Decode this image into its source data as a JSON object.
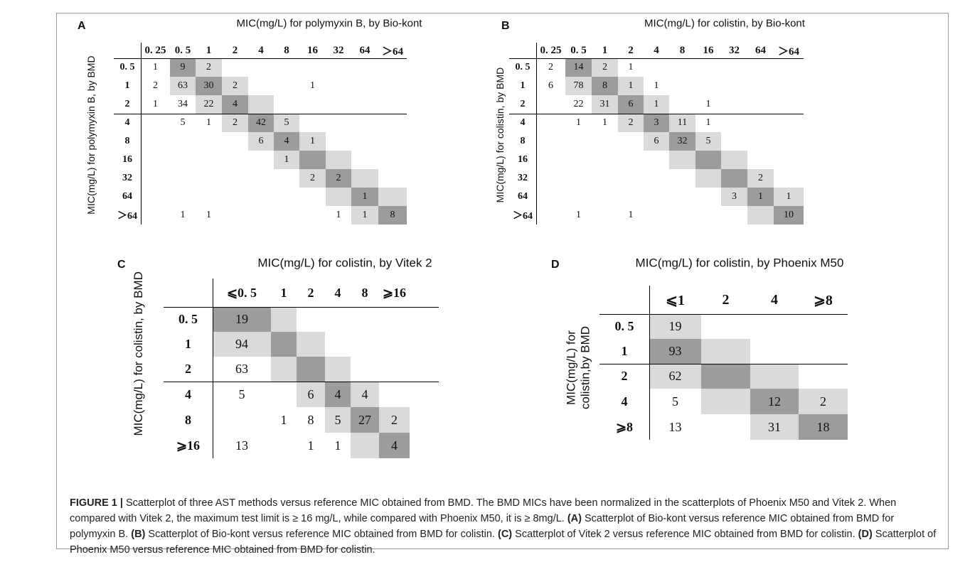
{
  "figure_label": "FIGURE 1 |",
  "caption": [
    {
      "text": "Scatterplot of three AST methods versus reference MIC obtained from BMD. The BMD MICs have been normalized in the scatterplots of Phoenix M50 and Vitek 2. When compared with Vitek 2, the maximum test limit is ≥ 16 mg/L, while compared with Phoenix M50, it is ≥ 8mg/L. ",
      "bold": false
    },
    {
      "text": "(A)",
      "bold": true
    },
    {
      "text": " Scatterplot of Bio-kont versus reference MIC obtained from BMD for polymyxin B. ",
      "bold": false
    },
    {
      "text": "(B)",
      "bold": true
    },
    {
      "text": " Scatterplot of Bio-kont versus reference MIC obtained from BMD for colistin. ",
      "bold": false
    },
    {
      "text": "(C)",
      "bold": true
    },
    {
      "text": " Scatterplot of Vitek 2 versus reference MIC obtained from BMD for colistin. ",
      "bold": false
    },
    {
      "text": "(D)",
      "bold": true
    },
    {
      "text": " Scatterplot of Phoenix M50 versus reference MIC obtained from BMD for colistin.",
      "bold": false
    }
  ],
  "colors": {
    "light_shade": "#dadada",
    "dark_shade": "#9c9c9c",
    "frame": "#9a9a9a"
  },
  "chart_data": [
    {
      "type": "table",
      "panel": "A",
      "title": "MIC(mg/L) for polymyxin B, by Bio-kont",
      "ylabel": "MIC(mg/L) for polymyxin B, by BMD",
      "columns": [
        "0. 25",
        "0. 5",
        "1",
        "2",
        "4",
        "8",
        "16",
        "32",
        "64",
        "＞64"
      ],
      "rows": [
        "0. 5",
        "1",
        "2",
        "4",
        "8",
        "16",
        "32",
        "64",
        "＞64"
      ],
      "values": [
        [
          "1",
          "9",
          "2",
          "",
          "",
          "",
          "",
          "",
          "",
          ""
        ],
        [
          "2",
          "63",
          "30",
          "2",
          "",
          "",
          "1",
          "",
          "",
          ""
        ],
        [
          "1",
          "34",
          "22",
          "4",
          "",
          "",
          "",
          "",
          "",
          ""
        ],
        [
          "",
          "5",
          "1",
          "2",
          "42",
          "5",
          "",
          "",
          "",
          ""
        ],
        [
          "",
          "",
          "",
          "",
          "6",
          "4",
          "1",
          "",
          "",
          ""
        ],
        [
          "",
          "",
          "",
          "",
          "",
          "1",
          "",
          "",
          "",
          ""
        ],
        [
          "",
          "",
          "",
          "",
          "",
          "",
          "2",
          "2",
          "",
          ""
        ],
        [
          "",
          "",
          "",
          "",
          "",
          "",
          "",
          "",
          "1",
          ""
        ],
        [
          "",
          "1",
          "1",
          "",
          "",
          "",
          "",
          "1",
          "1",
          "8"
        ]
      ],
      "diag_col_offset": 1,
      "breakpoint_after_row": 3
    },
    {
      "type": "table",
      "panel": "B",
      "title": "MIC(mg/L) for colistin, by Bio-kont",
      "ylabel": "MIC(mg/L) for colistin, by BMD",
      "columns": [
        "0. 25",
        "0. 5",
        "1",
        "2",
        "4",
        "8",
        "16",
        "32",
        "64",
        "＞64"
      ],
      "rows": [
        "0. 5",
        "1",
        "2",
        "4",
        "8",
        "16",
        "32",
        "64",
        "＞64"
      ],
      "values": [
        [
          "2",
          "14",
          "2",
          "1",
          "",
          "",
          "",
          "",
          "",
          ""
        ],
        [
          "6",
          "78",
          "8",
          "1",
          "1",
          "",
          "",
          "",
          "",
          ""
        ],
        [
          "",
          "22",
          "31",
          "6",
          "1",
          "",
          "1",
          "",
          "",
          ""
        ],
        [
          "",
          "1",
          "1",
          "2",
          "3",
          "11",
          "1",
          "",
          "",
          ""
        ],
        [
          "",
          "",
          "",
          "",
          "6",
          "32",
          "5",
          "",
          "",
          ""
        ],
        [
          "",
          "",
          "",
          "",
          "",
          "",
          "",
          "",
          "",
          ""
        ],
        [
          "",
          "",
          "",
          "",
          "",
          "",
          "",
          "",
          "2",
          ""
        ],
        [
          "",
          "",
          "",
          "",
          "",
          "",
          "",
          "3",
          "1",
          "1"
        ],
        [
          "",
          "1",
          "",
          "1",
          "",
          "",
          "",
          "",
          "",
          "10"
        ]
      ],
      "diag_col_offset": 1,
      "breakpoint_after_row": 3
    },
    {
      "type": "table",
      "panel": "C",
      "title": "MIC(mg/L) for colistin, by Vitek 2",
      "ylabel": "MIC(mg/L) for colistin, by BMD",
      "columns": [
        "⩽0. 5",
        "1",
        "2",
        "4",
        "8",
        "⩾16"
      ],
      "rows": [
        "0. 5",
        "1",
        "2",
        "4",
        "8",
        "⩾16"
      ],
      "values": [
        [
          "19",
          "",
          "",
          "",
          "",
          ""
        ],
        [
          "94",
          "",
          "",
          "",
          "",
          ""
        ],
        [
          "63",
          "",
          "",
          "",
          "",
          ""
        ],
        [
          "5",
          "",
          "6",
          "4",
          "4",
          ""
        ],
        [
          "",
          "1",
          "8",
          "5",
          "27",
          "2"
        ],
        [
          "13",
          "",
          "1",
          "1",
          "",
          "4"
        ]
      ],
      "diag_col_offset": 0,
      "breakpoint_after_row": 3
    },
    {
      "type": "table",
      "panel": "D",
      "title": "MIC(mg/L) for colistin, by Phoenix M50",
      "ylabel_lines": [
        "MIC(mg/L) for",
        "colistin,by BMD"
      ],
      "columns": [
        "⩽1",
        "2",
        "4",
        "⩾8"
      ],
      "rows": [
        "0. 5",
        "1",
        "2",
        "4",
        "⩾8"
      ],
      "values": [
        [
          "19",
          "",
          "",
          ""
        ],
        [
          "93",
          "",
          "",
          ""
        ],
        [
          "62",
          "",
          "",
          ""
        ],
        [
          "5",
          "",
          "12",
          "2"
        ],
        [
          "13",
          "",
          "31",
          "18"
        ]
      ],
      "breakpoint_after_row": 2
    }
  ]
}
